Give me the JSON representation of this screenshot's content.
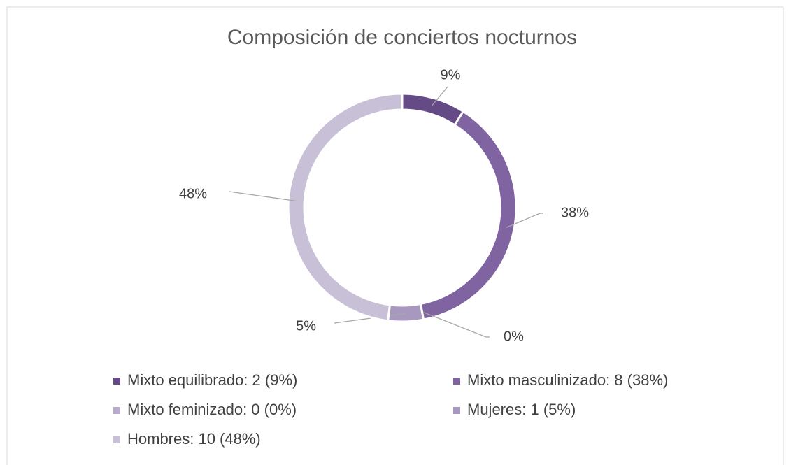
{
  "chart_data": {
    "type": "donut",
    "title": "Composición de conciertos nocturnos",
    "categories": [
      "Mixto equilibrado: 2 (9%)",
      "Mixto masculinizado: 8 (38%)",
      "Mixto feminizado: 0 (0%)",
      "Mujeres: 1 (5%)",
      "Hombres: 10 (48%)"
    ],
    "values": [
      9,
      38,
      0,
      5,
      48
    ],
    "value_labels": [
      "9%",
      "38%",
      "0%",
      "5%",
      "48%"
    ],
    "colors": [
      "#654b86",
      "#8064a2",
      "#b8abcc",
      "#a898c0",
      "#c8c0d6"
    ]
  }
}
